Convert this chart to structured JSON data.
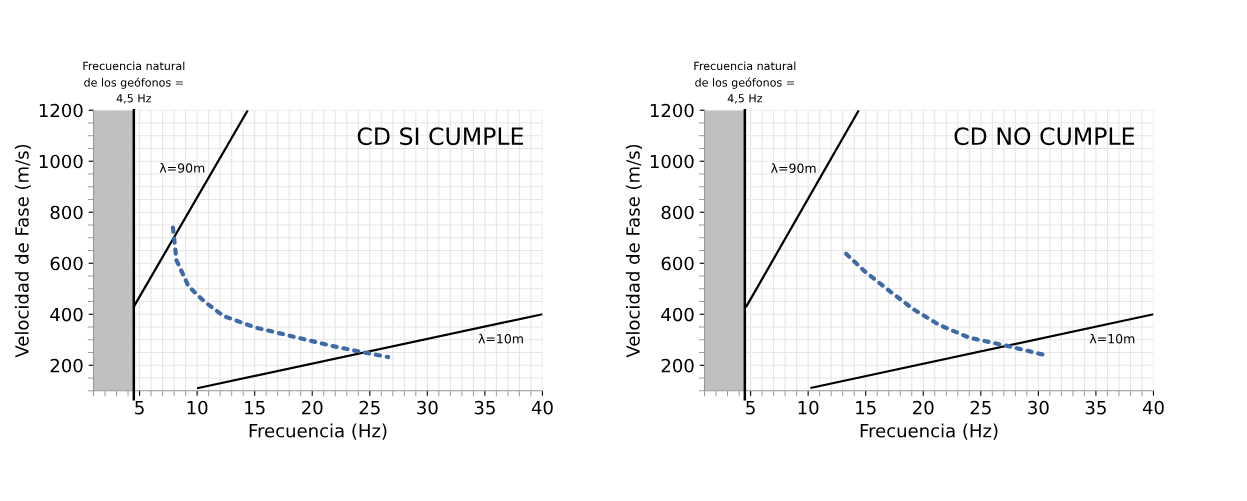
{
  "chart_data": [
    {
      "type": "line",
      "xlabel": "Frecuencia (Hz)",
      "ylabel": "Velocidad de Fase (m/s)",
      "xlim": [
        1,
        40
      ],
      "ylim": [
        100,
        1200
      ],
      "xticks": [
        5,
        10,
        15,
        20,
        25,
        30,
        35,
        40
      ],
      "yticks": [
        200,
        400,
        600,
        800,
        1000,
        1200
      ],
      "grid": true,
      "legend": false,
      "series": [
        {
          "name": "λ=90m",
          "color": "#000000",
          "line_style": "solid",
          "x": [
            4.5,
            14.4
          ],
          "values": [
            430,
            1200
          ]
        },
        {
          "name": "λ=10m",
          "color": "#000000",
          "line_style": "solid",
          "x": [
            10,
            40
          ],
          "values": [
            110,
            400
          ]
        },
        {
          "color": "#3e6aa8",
          "line_style": "dotted",
          "x": [
            7.9,
            8.07,
            8.2,
            9.25,
            10.6,
            12.3,
            15,
            18.4,
            21.7,
            24.1,
            26.6
          ],
          "values": [
            740,
            670,
            612,
            510,
            451,
            393,
            349,
            312,
            276,
            254,
            232
          ]
        }
      ],
      "ref_lines": [
        {
          "axis": "x",
          "value": 4.5,
          "label": "Frecuencia natural\nde los geófonos =\n4,5 Hz",
          "color": "#000000"
        }
      ],
      "bands": [
        {
          "axis": "x",
          "from": 1,
          "to": 4.5,
          "color": "#c0c0c0"
        }
      ],
      "annotations": [
        "CD SI CUMPLE"
      ]
    },
    {
      "type": "line",
      "xlabel": "Frecuencia (Hz)",
      "ylabel": "Velocidad de Fase (m/s)",
      "xlim": [
        1,
        40
      ],
      "ylim": [
        100,
        1200
      ],
      "xticks": [
        5,
        10,
        15,
        20,
        25,
        30,
        35,
        40
      ],
      "yticks": [
        200,
        400,
        600,
        800,
        1000,
        1200
      ],
      "grid": true,
      "legend": false,
      "series": [
        {
          "name": "λ=90m",
          "color": "#000000",
          "line_style": "solid",
          "x": [
            4.6,
            14.4
          ],
          "values": [
            428,
            1200
          ]
        },
        {
          "name": "λ=10m",
          "color": "#000000",
          "line_style": "solid",
          "x": [
            10.2,
            40
          ],
          "values": [
            111,
            400
          ]
        },
        {
          "color": "#3e6aa8",
          "line_style": "dotted",
          "x": [
            13.3,
            14.9,
            16.85,
            19.1,
            21.4,
            24.0,
            27.2,
            30.4
          ],
          "values": [
            637,
            569,
            499,
            421,
            358,
            308,
            277,
            242
          ]
        }
      ],
      "ref_lines": [
        {
          "axis": "x",
          "value": 4.5,
          "label": "Frecuencia natural\nde los geófonos =\n4,5 Hz",
          "color": "#000000"
        }
      ],
      "bands": [
        {
          "axis": "x",
          "from": 1,
          "to": 4.5,
          "color": "#c0c0c0"
        }
      ],
      "annotations": [
        "CD NO CUMPLE"
      ]
    }
  ]
}
